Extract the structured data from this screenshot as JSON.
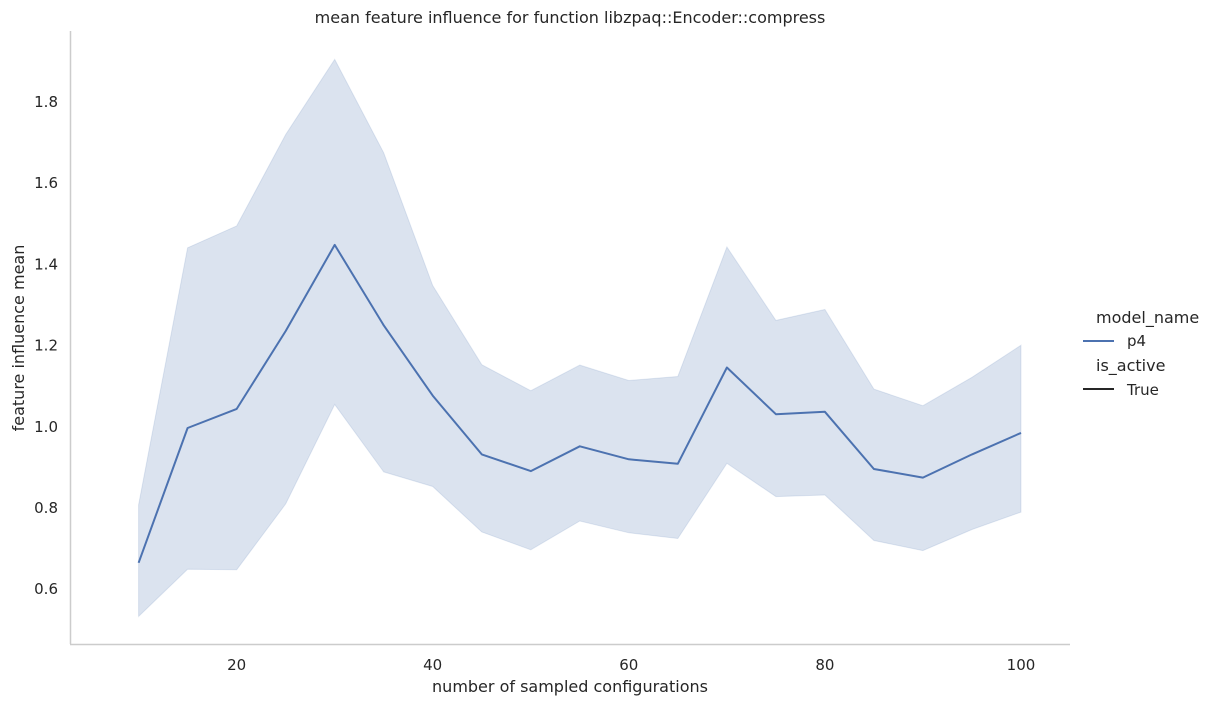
{
  "chart_data": {
    "type": "line",
    "title": "mean feature influence for function libzpaq::Encoder::compress",
    "xlabel": "number of sampled configurations",
    "ylabel": "feature influence mean",
    "xlim": [
      3,
      105
    ],
    "ylim": [
      0.465,
      1.975
    ],
    "x_ticks": [
      20,
      40,
      60,
      80,
      100
    ],
    "y_ticks": [
      0.6,
      0.8,
      1.0,
      1.2,
      1.4,
      1.6,
      1.8
    ],
    "x_tick_labels": [
      "20",
      "40",
      "60",
      "80",
      "100"
    ],
    "y_tick_labels": [
      "0.6",
      "0.8",
      "1.0",
      "1.2",
      "1.4",
      "1.6",
      "1.8"
    ],
    "grid": false,
    "series": [
      {
        "name": "p4",
        "color": "#4c72b0",
        "band_color": "#4c72b0",
        "x": [
          10,
          15,
          20,
          25,
          30,
          35,
          40,
          45,
          50,
          55,
          60,
          65,
          70,
          75,
          80,
          85,
          90,
          95,
          100
        ],
        "y": [
          0.665,
          0.997,
          1.044,
          1.236,
          1.448,
          1.25,
          1.077,
          0.932,
          0.891,
          0.952,
          0.92,
          0.909,
          1.146,
          1.031,
          1.037,
          0.896,
          0.875,
          0.932,
          0.985
        ],
        "upper": [
          0.808,
          1.441,
          1.495,
          1.72,
          1.905,
          1.675,
          1.348,
          1.153,
          1.089,
          1.152,
          1.114,
          1.124,
          1.443,
          1.262,
          1.289,
          1.093,
          1.052,
          1.122,
          1.201
        ],
        "lower": [
          0.533,
          0.649,
          0.648,
          0.81,
          1.055,
          0.889,
          0.853,
          0.741,
          0.697,
          0.768,
          0.739,
          0.725,
          0.91,
          0.828,
          0.832,
          0.72,
          0.695,
          0.747,
          0.79
        ]
      }
    ],
    "legend": {
      "position": "right",
      "hue_title": "model_name",
      "hue_entries": [
        {
          "label": "p4",
          "color": "#4c72b0"
        }
      ],
      "style_title": "is_active",
      "style_entries": [
        {
          "label": "True",
          "color": "#262626"
        }
      ]
    }
  }
}
